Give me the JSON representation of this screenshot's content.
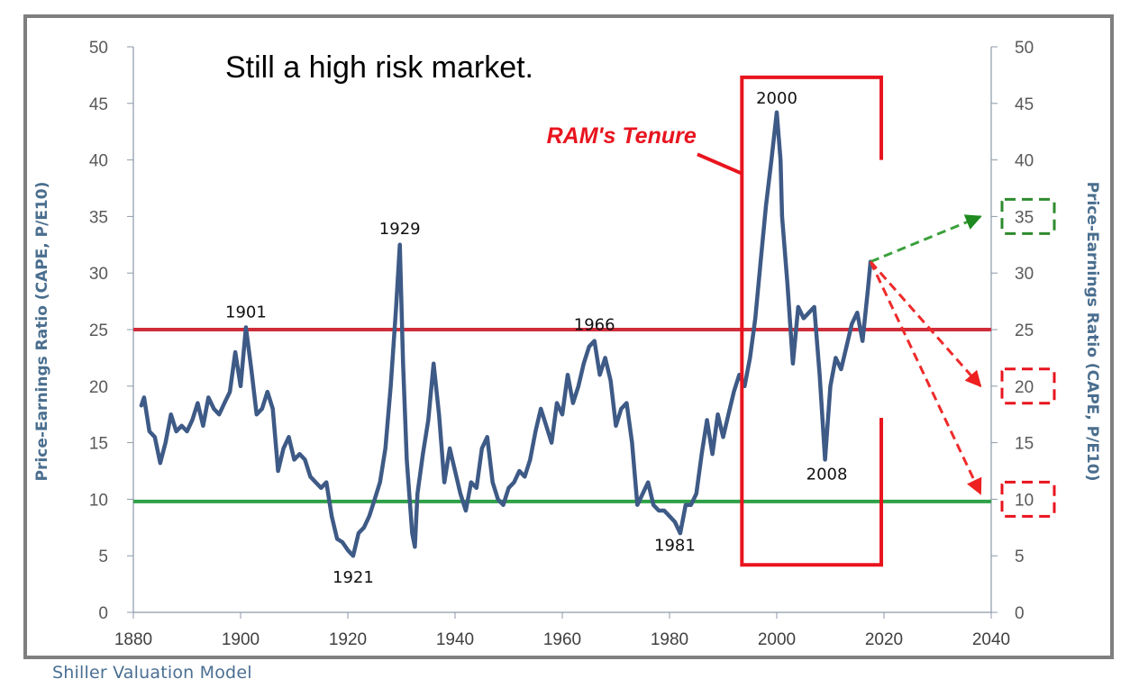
{
  "chart_data": {
    "type": "line",
    "title": "Still a high risk market.",
    "ylabel_left": "Price-Earnings Ratio (CAPE, P/E10)",
    "ylabel_right": "Price-Earnings Ratio (CAPE, P/E10)",
    "xlim": [
      1880,
      2040
    ],
    "ylim": [
      0,
      50
    ],
    "x_ticks": [
      1880,
      1900,
      1920,
      1940,
      1960,
      1980,
      2000,
      2020,
      2040
    ],
    "y_ticks": [
      0,
      5,
      10,
      15,
      20,
      25,
      30,
      35,
      40,
      45,
      50
    ],
    "grid": false,
    "series": [
      {
        "color": "#3e5a86",
        "points": [
          [
            1881.5,
            18.3
          ],
          [
            1882.0,
            19.0
          ],
          [
            1883.0,
            16.0
          ],
          [
            1884.0,
            15.5
          ],
          [
            1885.0,
            13.2
          ],
          [
            1886.0,
            15.0
          ],
          [
            1887.0,
            17.5
          ],
          [
            1888.0,
            16.0
          ],
          [
            1889.0,
            16.5
          ],
          [
            1890.0,
            16.0
          ],
          [
            1891.0,
            17.0
          ],
          [
            1892.0,
            18.5
          ],
          [
            1893.0,
            16.5
          ],
          [
            1894.0,
            19.0
          ],
          [
            1895.0,
            18.0
          ],
          [
            1896.0,
            17.5
          ],
          [
            1897.0,
            18.5
          ],
          [
            1898.0,
            19.5
          ],
          [
            1899.0,
            23.0
          ],
          [
            1900.0,
            20.0
          ],
          [
            1901.0,
            25.2
          ],
          [
            1902.0,
            21.5
          ],
          [
            1903.0,
            17.5
          ],
          [
            1904.0,
            18.0
          ],
          [
            1905.0,
            19.5
          ],
          [
            1906.0,
            18.0
          ],
          [
            1907.0,
            12.5
          ],
          [
            1908.0,
            14.5
          ],
          [
            1909.0,
            15.5
          ],
          [
            1910.0,
            13.5
          ],
          [
            1911.0,
            14.0
          ],
          [
            1912.0,
            13.5
          ],
          [
            1913.0,
            12.0
          ],
          [
            1914.0,
            11.5
          ],
          [
            1915.0,
            11.0
          ],
          [
            1916.0,
            11.5
          ],
          [
            1917.0,
            8.5
          ],
          [
            1918.0,
            6.5
          ],
          [
            1919.0,
            6.2
          ],
          [
            1920.0,
            5.5
          ],
          [
            1921.0,
            5.0
          ],
          [
            1922.0,
            7.0
          ],
          [
            1923.0,
            7.5
          ],
          [
            1924.0,
            8.5
          ],
          [
            1925.0,
            10.0
          ],
          [
            1926.0,
            11.5
          ],
          [
            1927.0,
            14.5
          ],
          [
            1928.0,
            20.0
          ],
          [
            1929.0,
            27.0
          ],
          [
            1929.7,
            32.5
          ],
          [
            1930.3,
            22.0
          ],
          [
            1931.0,
            13.5
          ],
          [
            1932.0,
            7.0
          ],
          [
            1932.5,
            5.8
          ],
          [
            1933.0,
            10.5
          ],
          [
            1934.0,
            14.0
          ],
          [
            1935.0,
            17.0
          ],
          [
            1936.0,
            22.0
          ],
          [
            1937.0,
            17.5
          ],
          [
            1938.0,
            11.5
          ],
          [
            1939.0,
            14.5
          ],
          [
            1940.0,
            12.5
          ],
          [
            1941.0,
            10.5
          ],
          [
            1942.0,
            9.0
          ],
          [
            1943.0,
            11.5
          ],
          [
            1944.0,
            11.0
          ],
          [
            1945.0,
            14.5
          ],
          [
            1946.0,
            15.5
          ],
          [
            1947.0,
            11.5
          ],
          [
            1948.0,
            10.0
          ],
          [
            1949.0,
            9.5
          ],
          [
            1950.0,
            11.0
          ],
          [
            1951.0,
            11.5
          ],
          [
            1952.0,
            12.5
          ],
          [
            1953.0,
            12.0
          ],
          [
            1954.0,
            13.5
          ],
          [
            1955.0,
            16.0
          ],
          [
            1956.0,
            18.0
          ],
          [
            1957.0,
            16.5
          ],
          [
            1958.0,
            15.0
          ],
          [
            1959.0,
            18.5
          ],
          [
            1960.0,
            17.5
          ],
          [
            1961.0,
            21.0
          ],
          [
            1962.0,
            18.5
          ],
          [
            1963.0,
            20.0
          ],
          [
            1964.0,
            22.0
          ],
          [
            1965.0,
            23.5
          ],
          [
            1966.0,
            24.0
          ],
          [
            1967.0,
            21.0
          ],
          [
            1968.0,
            22.5
          ],
          [
            1969.0,
            20.5
          ],
          [
            1970.0,
            16.5
          ],
          [
            1971.0,
            18.0
          ],
          [
            1972.0,
            18.5
          ],
          [
            1973.0,
            15.0
          ],
          [
            1974.0,
            9.5
          ],
          [
            1975.0,
            10.5
          ],
          [
            1976.0,
            11.5
          ],
          [
            1977.0,
            9.5
          ],
          [
            1978.0,
            9.0
          ],
          [
            1979.0,
            9.0
          ],
          [
            1980.0,
            8.5
          ],
          [
            1981.0,
            8.0
          ],
          [
            1982.0,
            7.0
          ],
          [
            1983.0,
            9.5
          ],
          [
            1984.0,
            9.5
          ],
          [
            1985.0,
            10.5
          ],
          [
            1986.0,
            14.0
          ],
          [
            1987.0,
            17.0
          ],
          [
            1988.0,
            14.0
          ],
          [
            1989.0,
            17.5
          ],
          [
            1990.0,
            15.5
          ],
          [
            1991.0,
            17.5
          ],
          [
            1992.0,
            19.5
          ],
          [
            1993.0,
            21.0
          ],
          [
            1994.0,
            20.0
          ],
          [
            1995.0,
            22.5
          ],
          [
            1996.0,
            26.0
          ],
          [
            1997.0,
            31.0
          ],
          [
            1998.0,
            36.0
          ],
          [
            1999.0,
            40.0
          ],
          [
            2000.0,
            44.2
          ],
          [
            2000.7,
            40.0
          ],
          [
            2001.0,
            35.0
          ],
          [
            2002.0,
            29.0
          ],
          [
            2003.0,
            22.0
          ],
          [
            2004.0,
            27.0
          ],
          [
            2005.0,
            26.0
          ],
          [
            2006.0,
            26.5
          ],
          [
            2007.0,
            27.0
          ],
          [
            2008.0,
            21.0
          ],
          [
            2009.0,
            13.5
          ],
          [
            2010.0,
            20.0
          ],
          [
            2011.0,
            22.5
          ],
          [
            2012.0,
            21.5
          ],
          [
            2013.0,
            23.5
          ],
          [
            2014.0,
            25.5
          ],
          [
            2015.0,
            26.5
          ],
          [
            2016.0,
            24.0
          ],
          [
            2017.0,
            28.5
          ],
          [
            2017.5,
            31.0
          ]
        ]
      }
    ],
    "reference_lines": [
      {
        "y": 25,
        "color": "#d02c3a"
      },
      {
        "y": 9.8,
        "color": "#2ea046"
      }
    ],
    "annotations": [
      {
        "text": "1901",
        "x": 1901,
        "y": 25.2
      },
      {
        "text": "1929",
        "x": 1929.7,
        "y": 32.5
      },
      {
        "text": "1921",
        "x": 1921,
        "y": 5.0
      },
      {
        "text": "1966",
        "x": 1966,
        "y": 24.0
      },
      {
        "text": "1981",
        "x": 1981,
        "y": 8.0
      },
      {
        "text": "2000",
        "x": 2000,
        "y": 44.2
      },
      {
        "text": "2008",
        "x": 2009,
        "y": 13.5
      }
    ],
    "tenure_box": {
      "label": "RAM's Tenure",
      "x_start": 1993.5,
      "x_end": 2019.5,
      "y_low": 4.2,
      "y_high": 47.3,
      "color": "#e8141e"
    },
    "projections": [
      {
        "label": "35",
        "from": [
          2017.5,
          31.0
        ],
        "to": [
          2038,
          35.0
        ],
        "color": "#2e8b2e"
      },
      {
        "label": "20",
        "from": [
          2017.5,
          31.0
        ],
        "to": [
          2038,
          20.0
        ],
        "color": "#e8141e"
      },
      {
        "label": "10",
        "from": [
          2017.5,
          31.0
        ],
        "to": [
          2038,
          10.5
        ],
        "color": "#e8141e"
      }
    ]
  },
  "footer": {
    "source": "Shiller Valuation Model"
  }
}
